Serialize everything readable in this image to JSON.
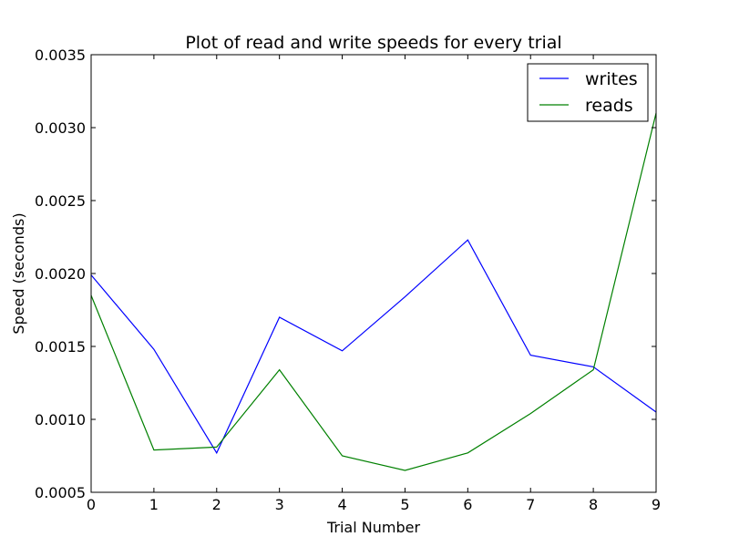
{
  "chart_data": {
    "type": "line",
    "title": "Plot of read and write speeds for every trial",
    "xlabel": "Trial Number",
    "ylabel": "Speed (seconds)",
    "x": [
      0,
      1,
      2,
      3,
      4,
      5,
      6,
      7,
      8,
      9
    ],
    "xlim": [
      0,
      9
    ],
    "ylim": [
      0.0005,
      0.0035
    ],
    "xticks": [
      "0",
      "1",
      "2",
      "3",
      "4",
      "5",
      "6",
      "7",
      "8",
      "9"
    ],
    "yticks": [
      {
        "value": 0.0005,
        "label": "0.0005"
      },
      {
        "value": 0.001,
        "label": "0.0010"
      },
      {
        "value": 0.0015,
        "label": "0.0015"
      },
      {
        "value": 0.002,
        "label": "0.0020"
      },
      {
        "value": 0.0025,
        "label": "0.0025"
      },
      {
        "value": 0.003,
        "label": "0.0030"
      },
      {
        "value": 0.0035,
        "label": "0.0035"
      }
    ],
    "grid": false,
    "legend_position": "top-right",
    "series": [
      {
        "name": "writes",
        "color": "#0000ff",
        "values": [
          0.00199,
          0.00148,
          0.00077,
          0.0017,
          0.00147,
          0.00184,
          0.00223,
          0.00144,
          0.00136,
          0.00105
        ]
      },
      {
        "name": "reads",
        "color": "#008000",
        "values": [
          0.00185,
          0.00079,
          0.00081,
          0.00134,
          0.00075,
          0.00065,
          0.00077,
          0.00104,
          0.00134,
          0.0031
        ]
      }
    ]
  }
}
